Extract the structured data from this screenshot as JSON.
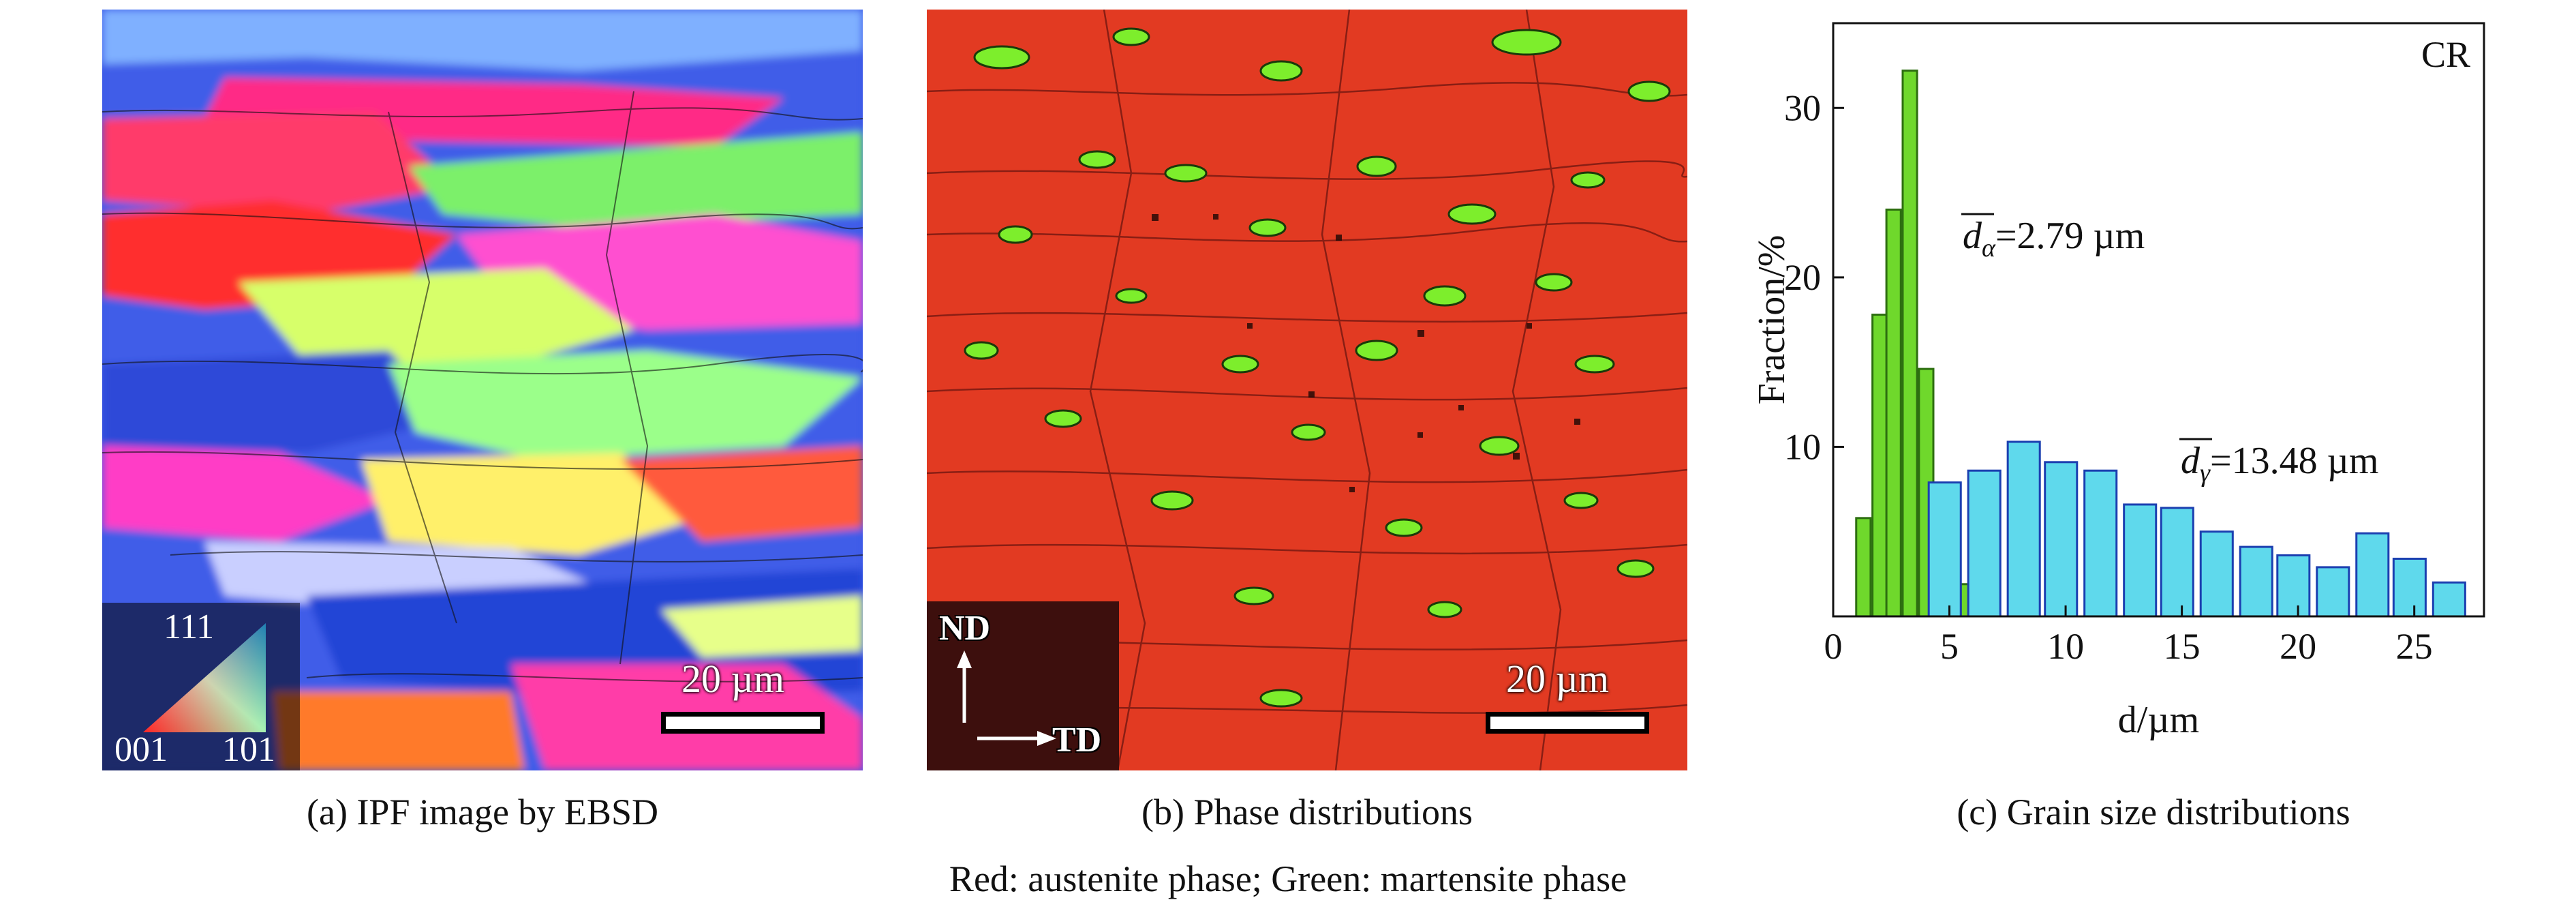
{
  "panel_a": {
    "caption": "(a) IPF image by EBSD",
    "scale_label": "20 µm",
    "inset": {
      "top_label": "111",
      "left_label": "001",
      "right_label": "101"
    }
  },
  "panel_b": {
    "caption": "(b) Phase distributions",
    "scale_label": "20 µm",
    "axes": {
      "vertical": "ND",
      "horizontal": "TD"
    },
    "colors": {
      "austenite": "#e23a22",
      "martensite": "#7dee2c"
    }
  },
  "panel_c": {
    "caption": "(c) Grain size distributions"
  },
  "legend_note": "Red: austenite phase; Green: martensite phase",
  "chart_data": {
    "type": "bar",
    "title": "",
    "corner_label": "CR",
    "xlabel": "d/µm",
    "ylabel": "Fraction/%",
    "xlim": [
      0,
      28
    ],
    "ylim": [
      0,
      35
    ],
    "xticks": [
      0,
      5,
      10,
      15,
      20,
      25
    ],
    "yticks": [
      10,
      20,
      30
    ],
    "grid": false,
    "series": [
      {
        "color": "#6fd82c",
        "annotation": "dα=2.79 µm",
        "annotation_parts": {
          "symbol": "d",
          "subscript": "α",
          "value": "=2.79 µm"
        },
        "x": [
          1.3,
          2.0,
          2.6,
          3.3,
          4.0,
          4.7,
          5.2,
          5.8
        ],
        "values": [
          5.8,
          17.8,
          24.0,
          32.2,
          14.6,
          2.0,
          1.6,
          1.9
        ]
      },
      {
        "color": "#5fd9ec",
        "annotation": "dγ=13.48 µm",
        "annotation_parts": {
          "symbol": "d",
          "subscript": "γ",
          "value": "=13.48 µm"
        },
        "x": [
          4.8,
          6.5,
          8.2,
          9.8,
          11.5,
          13.2,
          14.8,
          16.5,
          18.2,
          19.8,
          21.5,
          23.2,
          24.8,
          26.5
        ],
        "values": [
          7.9,
          8.6,
          10.3,
          9.1,
          8.6,
          6.6,
          6.4,
          5.0,
          4.1,
          3.6,
          2.9,
          4.9,
          3.4,
          2.0
        ]
      }
    ]
  }
}
